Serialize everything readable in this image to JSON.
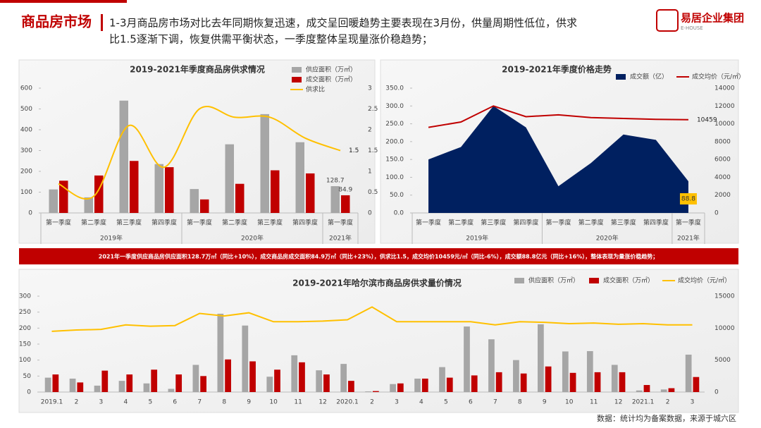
{
  "header": {
    "title": "商品房市场",
    "subtitle_1": "1-3月商品房市场对比去年同期恢复迅速，成交呈回暖趋势主要表现在3月份，供量周期性低位，供求",
    "subtitle_2": "比1.5逐渐下调，恢复供需平衡状态，一季度整体呈现量涨价稳趋势；",
    "logo": "易居企业集团",
    "logo_sub": "E-HOUSE"
  },
  "banner": "2021年一季度供应商品房供应面积128.7万㎡（同比+10%），成交商品房成交面积84.9万㎡（同比+23%），供求比1.5，成交均价10459元/㎡（同比-6%），成交额88.8亿元（同比+16%），整体表现为量涨价稳趋势；",
  "footer": "数据：统计均为备案数据，来源于城六区",
  "chart_data": [
    {
      "type": "bar",
      "title": "2019-2021年季度商品房供求情况",
      "categories": [
        "第一季度",
        "第二季度",
        "第三季度",
        "第四季度",
        "第一季度",
        "第二季度",
        "第三季度",
        "第四季度",
        "第一季度"
      ],
      "category_groups": [
        "2019年",
        "2019年",
        "2019年",
        "2019年",
        "2020年",
        "2020年",
        "2020年",
        "2020年",
        "2021年"
      ],
      "series": [
        {
          "name": "供应面积（万㎡）",
          "type": "bar",
          "color": "#a6a6a6",
          "values": [
            113,
            75,
            540,
            235,
            115,
            330,
            475,
            340,
            128.7
          ]
        },
        {
          "name": "成交面积（万㎡）",
          "type": "bar",
          "color": "#c00000",
          "values": [
            155,
            180,
            250,
            220,
            65,
            140,
            205,
            190,
            84.9
          ]
        },
        {
          "name": "供求比",
          "type": "line",
          "color": "#ffc000",
          "axis": "y2",
          "smooth": true,
          "values": [
            0.7,
            0.4,
            2.1,
            1.1,
            2.5,
            2.3,
            2.3,
            1.8,
            1.5
          ]
        }
      ],
      "ylim": [
        0,
        600
      ],
      "yticks": [
        0,
        100,
        200,
        300,
        400,
        500,
        600
      ],
      "y2lim": [
        0,
        3
      ],
      "y2ticks": [
        0,
        0.5,
        1,
        1.5,
        2,
        2.5,
        3
      ],
      "data_labels": "last",
      "legend": "top-right"
    },
    {
      "type": "area",
      "title": "2019-2021年季度价格走势",
      "categories": [
        "第一季度",
        "第二季度",
        "第三季度",
        "第四季度",
        "第一季度",
        "第二季度",
        "第三季度",
        "第四季度",
        "第一季度"
      ],
      "category_groups": [
        "2019年",
        "2019年",
        "2019年",
        "2019年",
        "2020年",
        "2020年",
        "2020年",
        "2020年",
        "2021年"
      ],
      "series": [
        {
          "name": "成交额（亿）",
          "type": "area",
          "color": "#002060",
          "values": [
            150,
            185,
            300,
            240,
            75,
            140,
            220,
            205,
            88.8
          ]
        },
        {
          "name": "成交均价（元/㎡）",
          "type": "line",
          "color": "#c00000",
          "axis": "y2",
          "values": [
            9600,
            10200,
            12000,
            10800,
            11000,
            10700,
            10600,
            10500,
            10459
          ]
        }
      ],
      "ylim": [
        0,
        350
      ],
      "yticks": [
        {
          "value": 0,
          "label": "0.0"
        },
        {
          "value": 50,
          "label": "50.0"
        },
        {
          "value": 100,
          "label": "100.0"
        },
        {
          "value": 150,
          "label": "150.0"
        },
        {
          "value": 200,
          "label": "200.0"
        },
        {
          "value": 250,
          "label": "250.0"
        },
        {
          "value": 300,
          "label": "300.0"
        },
        {
          "value": 350,
          "label": "350.0"
        }
      ],
      "y2lim": [
        0,
        14000
      ],
      "y2ticks": [
        0,
        2000,
        4000,
        6000,
        8000,
        10000,
        12000,
        14000
      ],
      "data_labels": "last",
      "legend": "top-right"
    },
    {
      "type": "bar",
      "title": "2019-2021年哈尔滨市商品房供求量价情况",
      "categories": [
        "2019.1",
        "2",
        "3",
        "4",
        "5",
        "6",
        "7",
        "8",
        "9",
        "10",
        "11",
        "12",
        "2020.1",
        "2",
        "3",
        "4",
        "5",
        "6",
        "7",
        "8",
        "9",
        "10",
        "11",
        "12",
        "2021.1",
        "2",
        "3"
      ],
      "series": [
        {
          "name": "供应面积（万㎡）",
          "type": "bar",
          "color": "#a6a6a6",
          "values": [
            45,
            42,
            20,
            35,
            27,
            10,
            85,
            245,
            208,
            48,
            115,
            68,
            88,
            2,
            25,
            42,
            78,
            205,
            165,
            100,
            212,
            127,
            128,
            85,
            5,
            8,
            117
          ]
        },
        {
          "name": "成交面积（万㎡）",
          "type": "bar",
          "color": "#c00000",
          "values": [
            55,
            30,
            67,
            55,
            70,
            55,
            50,
            102,
            96,
            70,
            93,
            55,
            35,
            3,
            27,
            42,
            45,
            52,
            62,
            58,
            80,
            60,
            62,
            62,
            22,
            12,
            47
          ]
        },
        {
          "name": "成交均价（元/㎡）",
          "type": "line",
          "color": "#ffc000",
          "axis": "y2",
          "values": [
            9500,
            9700,
            9800,
            10500,
            10300,
            10400,
            12300,
            11900,
            12400,
            11000,
            11000,
            11100,
            11300,
            13300,
            11000,
            11000,
            11000,
            11000,
            10500,
            11000,
            10900,
            10700,
            10800,
            10600,
            10700,
            10500,
            10500
          ]
        }
      ],
      "ylim": [
        0,
        300
      ],
      "yticks": [
        0,
        50,
        100,
        150,
        200,
        250,
        300
      ],
      "y2lim": [
        0,
        15000
      ],
      "y2ticks": [
        0,
        5000,
        10000,
        15000
      ],
      "legend": "top-right"
    }
  ]
}
